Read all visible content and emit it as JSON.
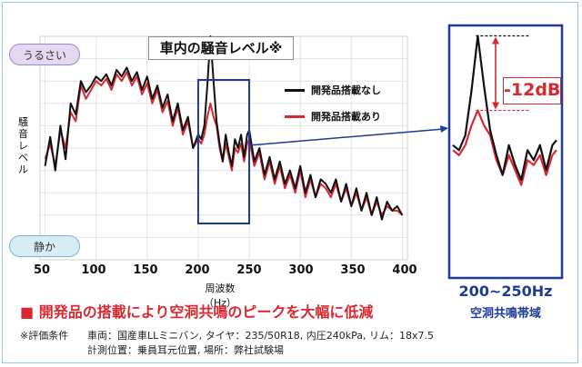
{
  "chart_data": {
    "type": "line",
    "title": "車内の騒音レベル※",
    "xlabel": "周波数（Hz）",
    "ylabel": "騒音レベル",
    "x_ticks": [
      50,
      100,
      150,
      200,
      250,
      300,
      350,
      400
    ],
    "xlim": [
      45,
      405
    ],
    "ylim": [
      0,
      100
    ],
    "y_axis_labels": {
      "top": "うるさい",
      "bottom": "静か"
    },
    "series": [
      {
        "name": "開発品搭載なし",
        "color": "#111111",
        "x": [
          50,
          55,
          60,
          65,
          70,
          75,
          80,
          85,
          90,
          95,
          100,
          105,
          110,
          115,
          120,
          125,
          130,
          135,
          140,
          145,
          150,
          155,
          160,
          165,
          170,
          175,
          180,
          185,
          190,
          195,
          200,
          203,
          206,
          209,
          212,
          215,
          218,
          221,
          224,
          227,
          230,
          233,
          236,
          239,
          242,
          245,
          248,
          250,
          255,
          260,
          265,
          270,
          275,
          280,
          285,
          290,
          295,
          300,
          305,
          310,
          315,
          320,
          325,
          330,
          335,
          340,
          345,
          350,
          355,
          360,
          365,
          370,
          375,
          380,
          385,
          390,
          395,
          400
        ],
        "values": [
          42,
          55,
          40,
          60,
          45,
          70,
          65,
          80,
          75,
          78,
          82,
          80,
          83,
          78,
          85,
          82,
          86,
          80,
          84,
          76,
          82,
          72,
          78,
          68,
          74,
          62,
          70,
          58,
          64,
          50,
          56,
          54,
          60,
          78,
          100,
          80,
          62,
          52,
          44,
          56,
          48,
          42,
          54,
          50,
          56,
          46,
          56,
          58,
          44,
          50,
          38,
          46,
          36,
          44,
          34,
          40,
          32,
          42,
          30,
          38,
          28,
          36,
          34,
          30,
          36,
          26,
          34,
          24,
          32,
          22,
          30,
          20,
          28,
          18,
          26,
          22,
          24,
          20
        ]
      },
      {
        "name": "開発品搭載あり",
        "color": "#d9282f",
        "x": [
          50,
          55,
          60,
          65,
          70,
          75,
          80,
          85,
          90,
          95,
          100,
          105,
          110,
          115,
          120,
          125,
          130,
          135,
          140,
          145,
          150,
          155,
          160,
          165,
          170,
          175,
          180,
          185,
          190,
          195,
          200,
          203,
          206,
          209,
          212,
          215,
          218,
          221,
          224,
          227,
          230,
          233,
          236,
          239,
          242,
          245,
          248,
          250,
          255,
          260,
          265,
          270,
          275,
          280,
          285,
          290,
          295,
          300,
          305,
          310,
          315,
          320,
          325,
          330,
          335,
          340,
          345,
          350,
          355,
          360,
          365,
          370,
          375,
          380,
          385,
          390,
          395,
          400
        ],
        "values": [
          45,
          52,
          42,
          58,
          50,
          66,
          62,
          78,
          72,
          76,
          80,
          78,
          81,
          76,
          83,
          80,
          84,
          78,
          82,
          74,
          79,
          70,
          76,
          66,
          71,
          60,
          68,
          56,
          62,
          50,
          54,
          52,
          56,
          64,
          70,
          64,
          60,
          50,
          44,
          52,
          46,
          40,
          50,
          48,
          52,
          44,
          52,
          54,
          42,
          48,
          36,
          44,
          34,
          42,
          32,
          38,
          30,
          40,
          28,
          36,
          28,
          34,
          32,
          28,
          34,
          26,
          32,
          24,
          30,
          22,
          28,
          20,
          26,
          20,
          24,
          22,
          22,
          20
        ]
      }
    ],
    "highlight": {
      "x_range": [
        200,
        250
      ],
      "label": "200~250Hz",
      "sublabel": "空洞共鳴帯域"
    },
    "annotation": "-12dB",
    "inset": {
      "xlim": [
        200,
        250
      ],
      "ylim": [
        0,
        100
      ]
    },
    "grid": true,
    "legend_placement": "top-right"
  },
  "headline": "■ 開発品の搭載により空洞共鳴のピークを大幅に低減",
  "conditions": {
    "label": "※評価条件",
    "line1": "車両：国産車LLミニバン, タイヤ：235/50R18, 内圧240kPa, リム：18x7.5",
    "line2": "計測位置：乗員耳元位置, 場所：弊社試験場"
  }
}
